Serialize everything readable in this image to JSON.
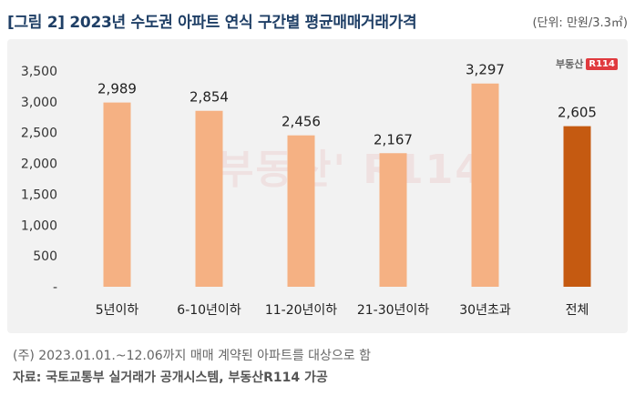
{
  "chart_data": {
    "type": "bar",
    "title": "[그림 2] 2023년 수도권 아파트 연식 구간별 평균매매거래가격",
    "unit": "(단위: 만원/3.3㎡)",
    "categories": [
      "5년이하",
      "6-10년이하",
      "11-20년이하",
      "21-30년이하",
      "30년초과",
      "전체"
    ],
    "values": [
      2989,
      2854,
      2456,
      2167,
      3297,
      2605
    ],
    "value_labels": [
      "2,989",
      "2,854",
      "2,456",
      "2,167",
      "3,297",
      "2,605"
    ],
    "yticks": [
      "-",
      "500",
      "1,000",
      "1,500",
      "2,000",
      "2,500",
      "3,000",
      "3,500"
    ],
    "ylim": [
      0,
      3500
    ],
    "grid": false,
    "colors": {
      "bar": "#f5b183",
      "highlight": "#c55a11",
      "title": "#1f3f66"
    },
    "highlight_index": 5
  },
  "logo": {
    "text": "부동산",
    "badge": "R114"
  },
  "watermark": "부동산' R114",
  "footer": {
    "note": "(주) 2023.01.01.~12.06까지 매매 계약된 아파트를 대상으로 함",
    "source": "자료: 국토교통부 실거래가 공개시스템, 부동산R114 가공"
  }
}
